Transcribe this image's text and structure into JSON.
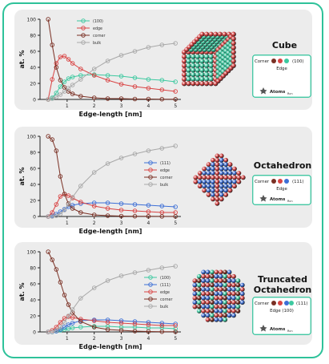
{
  "colors": {
    "frame": "#2ec29a",
    "card": "#ececec",
    "facet_100": "#3dc9a0",
    "facet_111": "#3d6fd6",
    "edge": "#d94444",
    "corner": "#7a3024",
    "bulk": "#a8a8a8",
    "label_box": "#2ec29a"
  },
  "chart_data": [
    {
      "type": "line",
      "ylabel": "at. %",
      "xlabel": "Edge-length [nm]",
      "ylim": [
        0,
        100
      ],
      "xlim": [
        0,
        5.2
      ],
      "yticks": [
        "0",
        "20",
        "40",
        "60",
        "80",
        "100"
      ],
      "xticks": [
        "1",
        "2",
        "3",
        "4",
        "5"
      ],
      "legend_position": "top-center",
      "grid": false,
      "series": [
        {
          "name": "(100)",
          "color": "#3dc9a0",
          "x": [
            0.3,
            0.45,
            0.6,
            0.75,
            0.9,
            1.05,
            1.2,
            1.5,
            2,
            2.5,
            3,
            3.5,
            4,
            4.5,
            5
          ],
          "values": [
            0,
            2,
            8,
            16,
            22,
            26,
            28,
            30,
            31,
            30,
            29,
            27,
            25,
            24,
            22
          ]
        },
        {
          "name": "edge",
          "color": "#d94444",
          "x": [
            0.3,
            0.45,
            0.6,
            0.75,
            0.9,
            1.05,
            1.2,
            1.5,
            2,
            2.5,
            3,
            3.5,
            4,
            4.5,
            5
          ],
          "values": [
            0,
            25,
            45,
            53,
            54,
            50,
            45,
            38,
            30,
            24,
            19,
            16,
            14,
            12,
            10
          ]
        },
        {
          "name": "corner",
          "color": "#7a3024",
          "x": [
            0.3,
            0.45,
            0.6,
            0.75,
            0.9,
            1.05,
            1.2,
            1.5,
            2,
            2.5,
            3,
            3.5,
            4,
            4.5,
            5
          ],
          "values": [
            100,
            68,
            40,
            24,
            15,
            10,
            7,
            4,
            2,
            1,
            1,
            0.5,
            0.5,
            0.3,
            0.2
          ]
        },
        {
          "name": "bulk",
          "color": "#a8a8a8",
          "x": [
            0.3,
            0.45,
            0.6,
            0.75,
            0.9,
            1.05,
            1.2,
            1.5,
            2,
            2.5,
            3,
            3.5,
            4,
            4.5,
            5
          ],
          "values": [
            0,
            1,
            3,
            6,
            10,
            14,
            18,
            25,
            38,
            48,
            55,
            60,
            65,
            68,
            70
          ]
        }
      ]
    },
    {
      "type": "line",
      "ylabel": "at. %",
      "xlabel": "Edge-length [nm]",
      "ylim": [
        0,
        100
      ],
      "xlim": [
        0,
        5.2
      ],
      "yticks": [
        "0",
        "20",
        "40",
        "60",
        "80",
        "100"
      ],
      "xticks": [
        "1",
        "2",
        "3",
        "4",
        "5"
      ],
      "legend_position": "right",
      "grid": false,
      "series": [
        {
          "name": "(111)",
          "color": "#3d6fd6",
          "x": [
            0.3,
            0.45,
            0.6,
            0.75,
            0.9,
            1.05,
            1.2,
            1.5,
            2,
            2.5,
            3,
            3.5,
            4,
            4.5,
            5
          ],
          "values": [
            0,
            1,
            3,
            6,
            9,
            12,
            14,
            16,
            17,
            17,
            16,
            15,
            14,
            13,
            12
          ]
        },
        {
          "name": "edge",
          "color": "#d94444",
          "x": [
            0.3,
            0.45,
            0.6,
            0.75,
            0.9,
            1.05,
            1.2,
            1.5,
            2,
            2.5,
            3,
            3.5,
            4,
            4.5,
            5
          ],
          "values": [
            0,
            5,
            15,
            25,
            28,
            26,
            23,
            18,
            13,
            10,
            8,
            7,
            6,
            5,
            5
          ]
        },
        {
          "name": "corner",
          "color": "#7a3024",
          "x": [
            0.3,
            0.45,
            0.6,
            0.75,
            0.9,
            1.05,
            1.2,
            1.5,
            2,
            2.5,
            3,
            3.5,
            4,
            4.5,
            5
          ],
          "values": [
            100,
            96,
            82,
            50,
            28,
            16,
            10,
            5,
            2,
            1,
            0.5,
            0.3,
            0.2,
            0.1,
            0.1
          ]
        },
        {
          "name": "bulk",
          "color": "#a8a8a8",
          "x": [
            0.3,
            0.45,
            0.6,
            0.75,
            0.9,
            1.05,
            1.2,
            1.5,
            2,
            2.5,
            3,
            3.5,
            4,
            4.5,
            5
          ],
          "values": [
            0,
            0,
            1,
            3,
            8,
            15,
            24,
            38,
            55,
            66,
            73,
            78,
            82,
            85,
            88
          ]
        }
      ]
    },
    {
      "type": "line",
      "ylabel": "at. %",
      "xlabel": "Edge-length [nm]",
      "ylim": [
        0,
        100
      ],
      "xlim": [
        0,
        5.2
      ],
      "yticks": [
        "0",
        "20",
        "40",
        "60",
        "80",
        "100"
      ],
      "xticks": [
        "1",
        "2",
        "3",
        "4",
        "5"
      ],
      "legend_position": "right",
      "grid": false,
      "series": [
        {
          "name": "(100)",
          "color": "#3dc9a0",
          "x": [
            0.3,
            0.45,
            0.6,
            0.75,
            0.9,
            1.05,
            1.2,
            1.5,
            2,
            2.5,
            3,
            3.5,
            4,
            4.5,
            5
          ],
          "values": [
            0,
            0,
            1,
            2,
            3,
            4,
            5,
            6,
            7,
            7,
            6,
            6,
            5,
            5,
            4
          ]
        },
        {
          "name": "(111)",
          "color": "#3d6fd6",
          "x": [
            0.3,
            0.45,
            0.6,
            0.75,
            0.9,
            1.05,
            1.2,
            1.5,
            2,
            2.5,
            3,
            3.5,
            4,
            4.5,
            5
          ],
          "values": [
            0,
            0,
            1,
            3,
            6,
            9,
            11,
            14,
            15,
            15,
            14,
            13,
            12,
            11,
            10
          ]
        },
        {
          "name": "edge",
          "color": "#d94444",
          "x": [
            0.3,
            0.45,
            0.6,
            0.75,
            0.9,
            1.05,
            1.2,
            1.5,
            2,
            2.5,
            3,
            3.5,
            4,
            4.5,
            5
          ],
          "values": [
            0,
            2,
            6,
            12,
            17,
            19,
            18,
            16,
            14,
            12,
            11,
            10,
            9,
            8,
            8
          ]
        },
        {
          "name": "corner",
          "color": "#7a3024",
          "x": [
            0.3,
            0.45,
            0.6,
            0.75,
            0.9,
            1.05,
            1.2,
            1.5,
            2,
            2.5,
            3,
            3.5,
            4,
            4.5,
            5
          ],
          "values": [
            100,
            90,
            78,
            62,
            46,
            34,
            24,
            13,
            6,
            3,
            2,
            1,
            0.5,
            0.3,
            0.2
          ]
        },
        {
          "name": "bulk",
          "color": "#a8a8a8",
          "x": [
            0.3,
            0.45,
            0.6,
            0.75,
            0.9,
            1.05,
            1.2,
            1.5,
            2,
            2.5,
            3,
            3.5,
            4,
            4.5,
            5
          ],
          "values": [
            0,
            0,
            2,
            6,
            12,
            20,
            28,
            42,
            55,
            64,
            70,
            74,
            77,
            80,
            82
          ]
        }
      ]
    }
  ],
  "shapes": [
    {
      "title_lines": [
        "Cube"
      ],
      "shape": "cube",
      "box_row1": [
        "Corner",
        "(100)"
      ],
      "box_row2": [
        "Edge"
      ],
      "box_row3": [
        "Atoms",
        "Rcn"
      ]
    },
    {
      "title_lines": [
        "Octahedron"
      ],
      "shape": "octahedron",
      "box_row1": [
        "Corner",
        "(111)"
      ],
      "box_row2": [
        "Edge"
      ],
      "box_row3": [
        "Atoms",
        "Rcn"
      ]
    },
    {
      "title_lines": [
        "Truncated",
        "Octahedron"
      ],
      "shape": "truncated-octahedron",
      "box_row1": [
        "Corner",
        "(111)"
      ],
      "box_row2": [
        "Edge (100)"
      ],
      "box_row3": [
        "Atoms",
        "Rcn"
      ]
    }
  ]
}
